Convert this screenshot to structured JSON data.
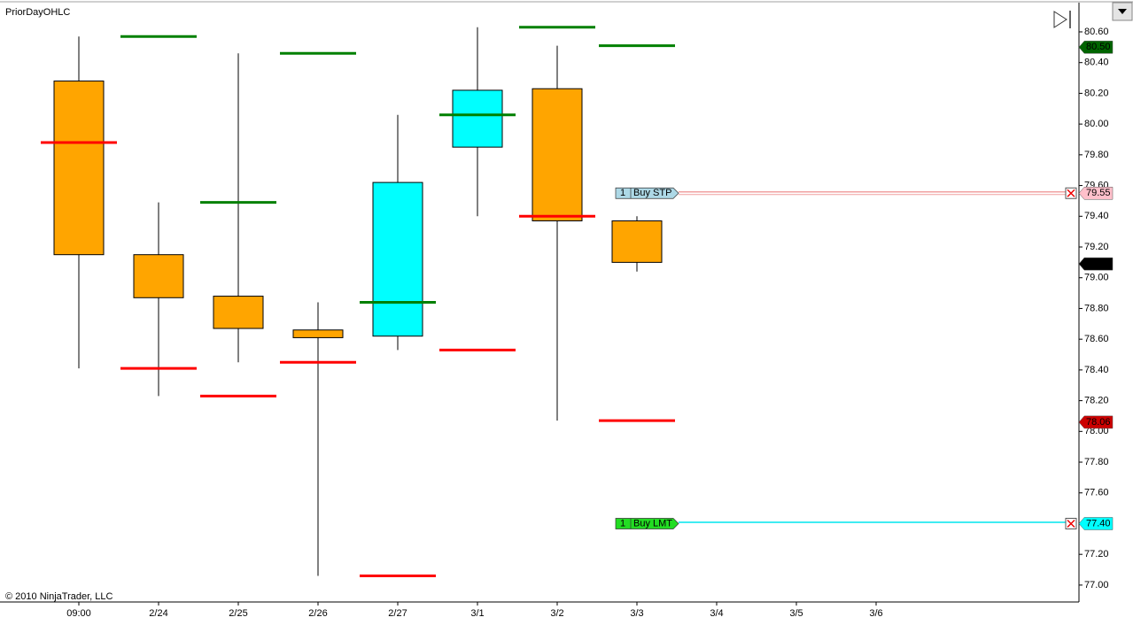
{
  "chart_data": {
    "type": "candlestick",
    "title": "PriorDayOHLC",
    "footer": "© 2010 NinjaTrader, LLC",
    "categories": [
      "09:00",
      "2/24",
      "2/25",
      "2/26",
      "2/27",
      "3/1",
      "3/2",
      "3/3",
      "3/4",
      "3/5",
      "3/6",
      null,
      null
    ],
    "open": [
      80.28,
      79.15,
      78.88,
      78.66,
      78.62,
      79.85,
      80.23,
      79.37,
      null,
      null,
      null,
      null,
      null
    ],
    "high": [
      80.57,
      79.49,
      80.46,
      78.84,
      80.06,
      80.63,
      80.51,
      79.4,
      null,
      null,
      null,
      null,
      null
    ],
    "low": [
      78.41,
      78.23,
      78.45,
      77.06,
      78.53,
      79.4,
      78.07,
      79.04,
      null,
      null,
      null,
      null,
      null
    ],
    "close": [
      79.15,
      78.87,
      78.67,
      78.61,
      79.62,
      80.22,
      79.37,
      79.1,
      null,
      null,
      null,
      null,
      null
    ],
    "up_color": "#00ffff",
    "down_color": "#ffa500",
    "prior_lines": [
      {
        "name": "Prior high",
        "color": "#008000",
        "values": [
          null,
          80.57,
          79.49,
          80.46,
          78.84,
          80.06,
          80.63,
          80.51,
          null,
          null,
          null,
          null,
          null
        ]
      },
      {
        "name": "Prior low",
        "color": "#ff0000",
        "values": [
          79.88,
          78.41,
          78.23,
          78.45,
          77.06,
          78.53,
          79.4,
          78.07,
          null,
          null,
          null,
          null,
          null
        ]
      }
    ],
    "ylim": [
      76.89,
      80.79
    ],
    "yticks": [
      {
        "value": 77.0,
        "label": "77.00"
      },
      {
        "value": 77.2,
        "label": "77.20"
      },
      {
        "value": 77.4,
        "label": "77.40"
      },
      {
        "value": 77.6,
        "label": "77.60"
      },
      {
        "value": 77.8,
        "label": "77.80"
      },
      {
        "value": 78.0,
        "label": "78.00"
      },
      {
        "value": 78.2,
        "label": "78.20"
      },
      {
        "value": 78.4,
        "label": "78.40"
      },
      {
        "value": 78.6,
        "label": "78.60"
      },
      {
        "value": 78.8,
        "label": "78.80"
      },
      {
        "value": 79.0,
        "label": "79.00"
      },
      {
        "value": 79.2,
        "label": "79.20"
      },
      {
        "value": 79.4,
        "label": "79.40"
      },
      {
        "value": 79.6,
        "label": "79.60"
      },
      {
        "value": 79.8,
        "label": "79.80"
      },
      {
        "value": 80.0,
        "label": "80.00"
      },
      {
        "value": 80.2,
        "label": "80.20"
      },
      {
        "value": 80.4,
        "label": "80.40"
      },
      {
        "value": 80.6,
        "label": "80.60"
      }
    ],
    "markers": [
      {
        "value": 80.5,
        "label": "80.50",
        "color": "#006400",
        "text_color": "#ffffff"
      },
      {
        "value": 79.09,
        "label": "79.09",
        "color": "#000000",
        "text_color": "#ffffff"
      },
      {
        "value": 78.06,
        "label": "78.06",
        "color": "#cc0000",
        "text_color": "#ffd0d0"
      }
    ],
    "orders": [
      {
        "qty": 1,
        "text": "Buy STP",
        "price": {
          "value": 79.55,
          "label": "79.55"
        },
        "color": "#add8e6",
        "line_color": "#f0a0a0",
        "marker_color": "#ffc0cb"
      },
      {
        "qty": 1,
        "text": "Buy LMT",
        "price": {
          "value": 77.4,
          "label": "77.40"
        },
        "color": "#22dd22",
        "line_color": "#00e5ee",
        "marker_color": "#00ffff"
      }
    ]
  }
}
